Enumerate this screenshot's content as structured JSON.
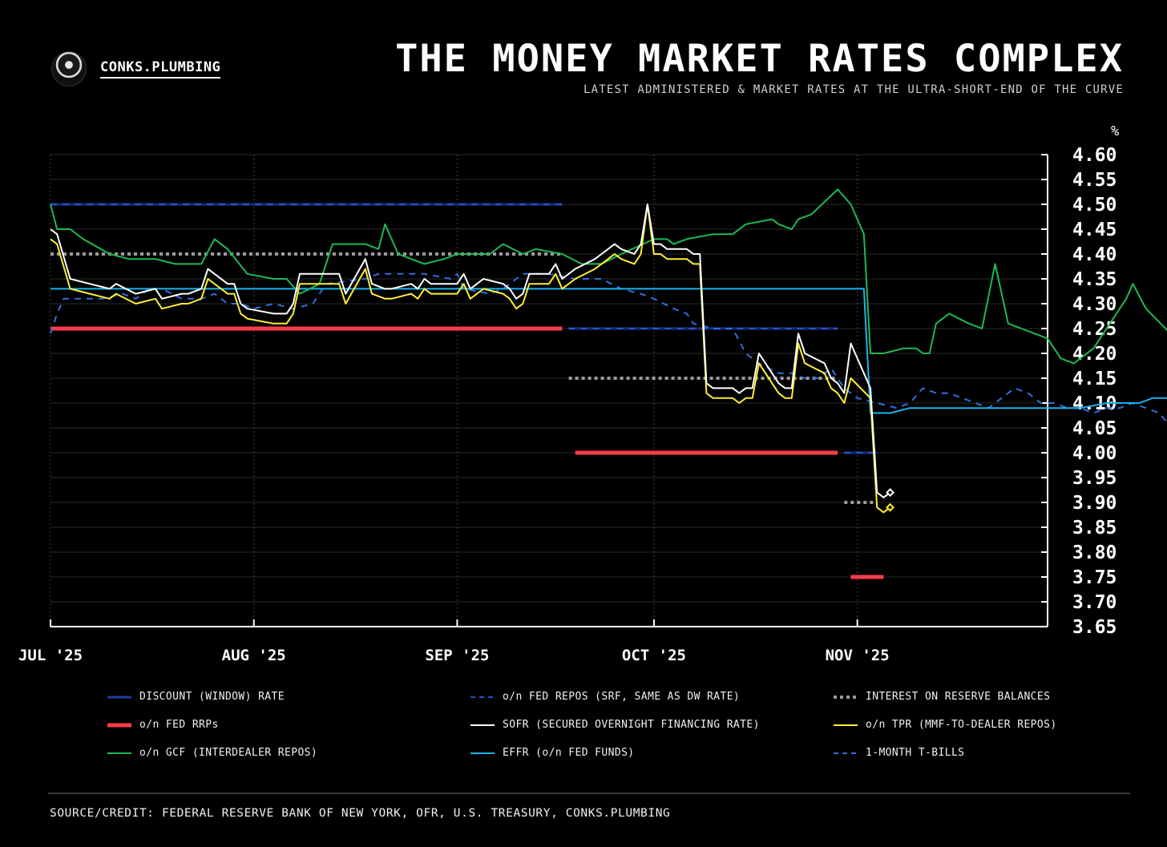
{
  "header": {
    "brand": "CONKS.PLUMBING",
    "title": "THE MONEY MARKET RATES COMPLEX",
    "subtitle": "LATEST ADMINISTERED & MARKET RATES AT THE ULTRA-SHORT-END OF THE CURVE"
  },
  "footer": {
    "source": "SOURCE/CREDIT: FEDERAL RESERVE BANK OF NEW YORK, OFR, U.S. TREASURY, CONKS.PLUMBING"
  },
  "chart_data": {
    "type": "line",
    "y_unit": "%",
    "ylim": [
      3.65,
      4.6
    ],
    "y_ticks": [
      "4.60",
      "4.55",
      "4.50",
      "4.45",
      "4.40",
      "4.35",
      "4.30",
      "4.25",
      "4.20",
      "4.15",
      "4.10",
      "4.05",
      "4.00",
      "3.95",
      "3.90",
      "3.85",
      "3.80",
      "3.75",
      "3.70",
      "3.65"
    ],
    "xlim": [
      "2025-07-01",
      "2025-11-30"
    ],
    "x_ticks": [
      {
        "date": "2025-07-01",
        "label": "JUL '25"
      },
      {
        "date": "2025-08-01",
        "label": "AUG '25"
      },
      {
        "date": "2025-09-01",
        "label": "SEP '25"
      },
      {
        "date": "2025-10-01",
        "label": "OCT '25"
      },
      {
        "date": "2025-11-01",
        "label": "NOV '25"
      }
    ],
    "grid": true,
    "legend_position": "bottom",
    "series": [
      {
        "name": "DISCOUNT (WINDOW) RATE",
        "color": "#1f3d9e",
        "style": "double",
        "segments": [
          [
            [
              "2025-07-01",
              4.5
            ],
            [
              "2025-09-17",
              4.5
            ]
          ],
          [
            [
              "2025-09-18",
              4.25
            ],
            [
              "2025-10-29",
              4.25
            ]
          ],
          [
            [
              "2025-10-30",
              4.0
            ],
            [
              "2025-11-04",
              4.0
            ]
          ]
        ]
      },
      {
        "name": "o/n FED REPOS (SRF, SAME AS DW RATE)",
        "color": "#2255cc",
        "style": "dashed",
        "segments": [
          [
            [
              "2025-07-01",
              4.5
            ],
            [
              "2025-09-17",
              4.5
            ]
          ],
          [
            [
              "2025-09-18",
              4.25
            ],
            [
              "2025-10-29",
              4.25
            ]
          ],
          [
            [
              "2025-10-30",
              4.0
            ],
            [
              "2025-11-04",
              4.0
            ]
          ]
        ]
      },
      {
        "name": "INTEREST ON RESERVE BALANCES",
        "color": "#9a9a9a",
        "style": "dotted-thick",
        "segments": [
          [
            [
              "2025-07-01",
              4.4
            ],
            [
              "2025-09-17",
              4.4
            ]
          ],
          [
            [
              "2025-09-18",
              4.15
            ],
            [
              "2025-10-29",
              4.15
            ]
          ],
          [
            [
              "2025-10-30",
              3.9
            ],
            [
              "2025-11-04",
              3.9
            ]
          ]
        ]
      },
      {
        "name": "o/n FED RRPs",
        "color": "#ff3b4a",
        "style": "thick",
        "segments": [
          [
            [
              "2025-07-01",
              4.25
            ],
            [
              "2025-09-17",
              4.25
            ]
          ],
          [
            [
              "2025-09-19",
              4.0
            ],
            [
              "2025-10-29",
              4.0
            ]
          ],
          [
            [
              "2025-10-31",
              3.75
            ],
            [
              "2025-11-05",
              3.75
            ]
          ]
        ]
      },
      {
        "name": "SOFR (SECURED OVERNIGHT FINANCING RATE)",
        "color": "#ffffff",
        "style": "solid",
        "end_marker": true,
        "points": [
          [
            "2025-07-01",
            4.45
          ],
          [
            "2025-07-02",
            4.44
          ],
          [
            "2025-07-04",
            4.35
          ],
          [
            "2025-07-07",
            4.34
          ],
          [
            "2025-07-10",
            4.33
          ],
          [
            "2025-07-11",
            4.34
          ],
          [
            "2025-07-14",
            4.32
          ],
          [
            "2025-07-17",
            4.33
          ],
          [
            "2025-07-18",
            4.31
          ],
          [
            "2025-07-21",
            4.32
          ],
          [
            "2025-07-22",
            4.32
          ],
          [
            "2025-07-24",
            4.33
          ],
          [
            "2025-07-25",
            4.37
          ],
          [
            "2025-07-28",
            4.34
          ],
          [
            "2025-07-29",
            4.34
          ],
          [
            "2025-07-30",
            4.3
          ],
          [
            "2025-07-31",
            4.29
          ],
          [
            "2025-08-04",
            4.28
          ],
          [
            "2025-08-06",
            4.28
          ],
          [
            "2025-08-07",
            4.3
          ],
          [
            "2025-08-08",
            4.36
          ],
          [
            "2025-08-11",
            4.36
          ],
          [
            "2025-08-13",
            4.36
          ],
          [
            "2025-08-14",
            4.36
          ],
          [
            "2025-08-15",
            4.32
          ],
          [
            "2025-08-18",
            4.39
          ],
          [
            "2025-08-19",
            4.34
          ],
          [
            "2025-08-21",
            4.33
          ],
          [
            "2025-08-22",
            4.33
          ],
          [
            "2025-08-25",
            4.34
          ],
          [
            "2025-08-26",
            4.33
          ],
          [
            "2025-08-27",
            4.35
          ],
          [
            "2025-08-28",
            4.34
          ],
          [
            "2025-09-01",
            4.34
          ],
          [
            "2025-09-02",
            4.36
          ],
          [
            "2025-09-03",
            4.33
          ],
          [
            "2025-09-05",
            4.35
          ],
          [
            "2025-09-08",
            4.34
          ],
          [
            "2025-09-09",
            4.33
          ],
          [
            "2025-09-10",
            4.31
          ],
          [
            "2025-09-11",
            4.32
          ],
          [
            "2025-09-12",
            4.36
          ],
          [
            "2025-09-15",
            4.36
          ],
          [
            "2025-09-16",
            4.38
          ],
          [
            "2025-09-17",
            4.35
          ],
          [
            "2025-09-19",
            4.37
          ],
          [
            "2025-09-22",
            4.39
          ],
          [
            "2025-09-23",
            4.4
          ],
          [
            "2025-09-24",
            4.41
          ],
          [
            "2025-09-25",
            4.42
          ],
          [
            "2025-09-26",
            4.41
          ],
          [
            "2025-09-28",
            4.4
          ],
          [
            "2025-09-29",
            4.42
          ],
          [
            "2025-09-30",
            4.5
          ],
          [
            "2025-10-01",
            4.42
          ],
          [
            "2025-10-02",
            4.42
          ],
          [
            "2025-10-03",
            4.41
          ],
          [
            "2025-10-06",
            4.41
          ],
          [
            "2025-10-07",
            4.4
          ],
          [
            "2025-10-08",
            4.4
          ],
          [
            "2025-10-09",
            4.14
          ],
          [
            "2025-10-10",
            4.13
          ],
          [
            "2025-10-13",
            4.13
          ],
          [
            "2025-10-14",
            4.12
          ],
          [
            "2025-10-15",
            4.13
          ],
          [
            "2025-10-16",
            4.13
          ],
          [
            "2025-10-17",
            4.2
          ],
          [
            "2025-10-20",
            4.14
          ],
          [
            "2025-10-21",
            4.13
          ],
          [
            "2025-10-22",
            4.13
          ],
          [
            "2025-10-23",
            4.24
          ],
          [
            "2025-10-24",
            4.2
          ],
          [
            "2025-10-27",
            4.18
          ],
          [
            "2025-10-28",
            4.15
          ],
          [
            "2025-10-29",
            4.14
          ],
          [
            "2025-10-30",
            4.12
          ]
        ]
      },
      {
        "name": "o/n TPR (MMF-TO-DEALER REPOS)",
        "color": "#ffee33",
        "style": "solid",
        "end_marker": true,
        "points": []
      },
      {
        "name": "o/n GCF (INTERDEALER REPOS)",
        "color": "#1db954",
        "style": "solid",
        "end_marker": true,
        "points": []
      },
      {
        "name": "EFFR (o/n FED FUNDS)",
        "color": "#19b3ee",
        "style": "solid",
        "end_marker": true,
        "points": []
      },
      {
        "name": "1-MONTH T-BILLS",
        "color": "#2f6fe0",
        "style": "dashed",
        "end_marker": true,
        "points": []
      }
    ]
  }
}
